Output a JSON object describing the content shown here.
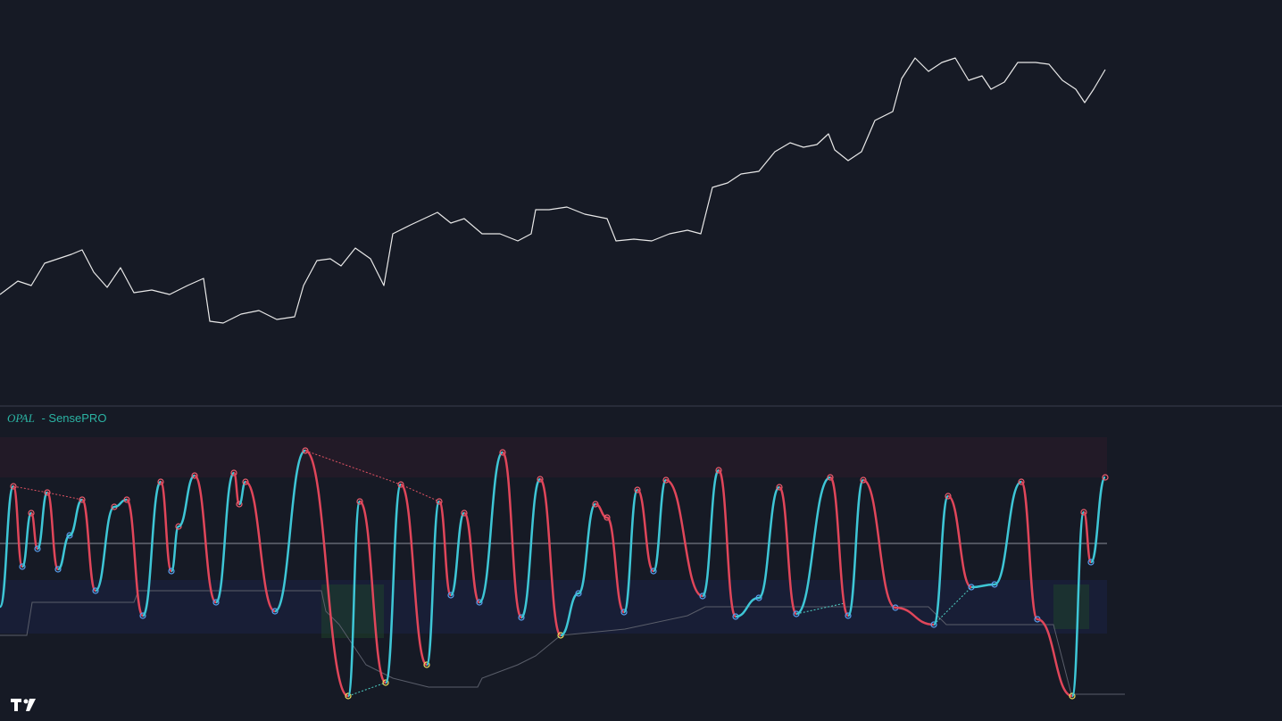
{
  "indicator": {
    "name": "OPAL",
    "label": "- SensePRO"
  }
}
